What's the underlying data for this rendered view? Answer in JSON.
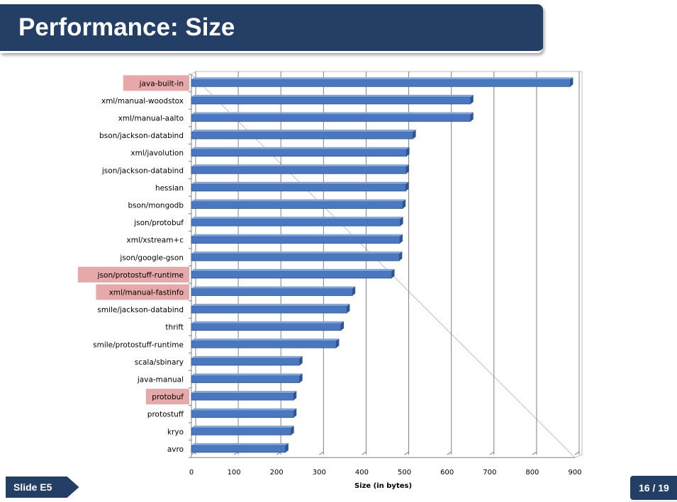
{
  "slide": {
    "title": "Performance: Size",
    "slide_label": "Slide E5",
    "page_indicator": "16 / 19"
  },
  "colors": {
    "title_bar": "#243f66",
    "bar_fill": "#4a78c0",
    "bar_dark": "#2e5592",
    "highlight": "#e6a8a8",
    "grid": "#808080"
  },
  "chart_data": {
    "type": "bar",
    "orientation": "horizontal",
    "title": "",
    "xlabel": "Size (in bytes)",
    "ylabel": "",
    "xlim": [
      0,
      900
    ],
    "xticks": [
      0,
      100,
      200,
      300,
      400,
      500,
      600,
      700,
      800,
      900
    ],
    "grid": true,
    "categories": [
      "java-built-in",
      "xml/manual-woodstox",
      "xml/manual-aalto",
      "bson/jackson-databind",
      "xml/javolution",
      "json/jackson-databind",
      "hessian",
      "bson/mongodb",
      "json/protobuf",
      "xml/xstream+c",
      "json/google-gson",
      "json/protostuff-runtime",
      "xml/manual-fastinfo",
      "smile/jackson-databind",
      "thrift",
      "smile/protostuff-runtime",
      "scala/sbinary",
      "java-manual",
      "protobuf",
      "protostuff",
      "kryo",
      "avro"
    ],
    "values": [
      889,
      655,
      655,
      520,
      505,
      504,
      503,
      496,
      490,
      489,
      488,
      470,
      378,
      365,
      351,
      340,
      254,
      254,
      240,
      240,
      234,
      221
    ],
    "highlighted": [
      "java-built-in",
      "json/protostuff-runtime",
      "xml/manual-fastinfo",
      "protobuf"
    ]
  }
}
